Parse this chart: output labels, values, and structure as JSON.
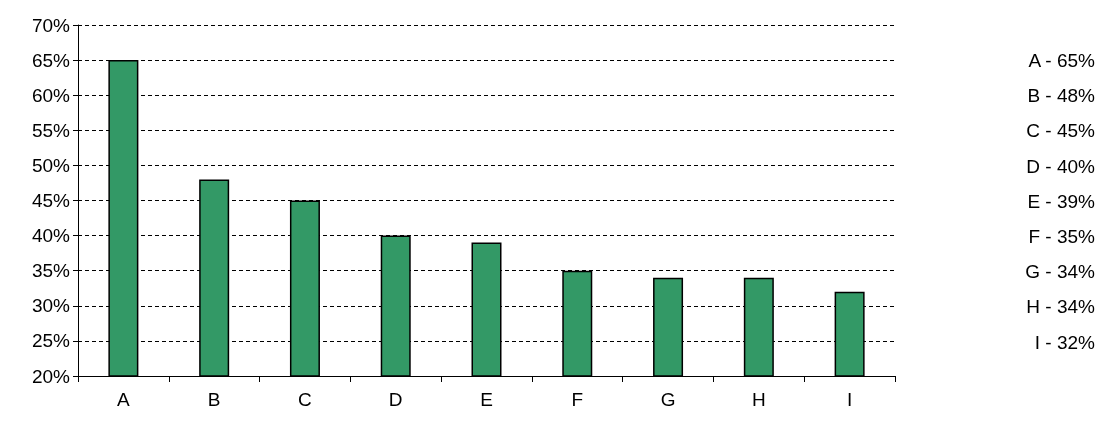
{
  "chart_data": {
    "type": "bar",
    "categories": [
      "A",
      "B",
      "C",
      "D",
      "E",
      "F",
      "G",
      "H",
      "I"
    ],
    "values": [
      65,
      48,
      45,
      40,
      39,
      35,
      34,
      34,
      32
    ],
    "color": "#339966",
    "annotations": [
      "A - 65%",
      "B - 48%",
      "C - 45%",
      "D - 40%",
      "E - 39%",
      "F - 35%",
      "G - 34%",
      "H - 34%",
      "I - 32%"
    ],
    "ylim": [
      20,
      70
    ],
    "yticks": [
      {
        "value": 20,
        "label": "20%"
      },
      {
        "value": 25,
        "label": "25%"
      },
      {
        "value": 30,
        "label": "30%"
      },
      {
        "value": 35,
        "label": "35%"
      },
      {
        "value": 40,
        "label": "40%"
      },
      {
        "value": 45,
        "label": "45%"
      },
      {
        "value": 50,
        "label": "50%"
      },
      {
        "value": 55,
        "label": "55%"
      },
      {
        "value": 60,
        "label": "60%"
      },
      {
        "value": 65,
        "label": "65%"
      },
      {
        "value": 70,
        "label": "70%"
      }
    ],
    "grid": "y"
  }
}
